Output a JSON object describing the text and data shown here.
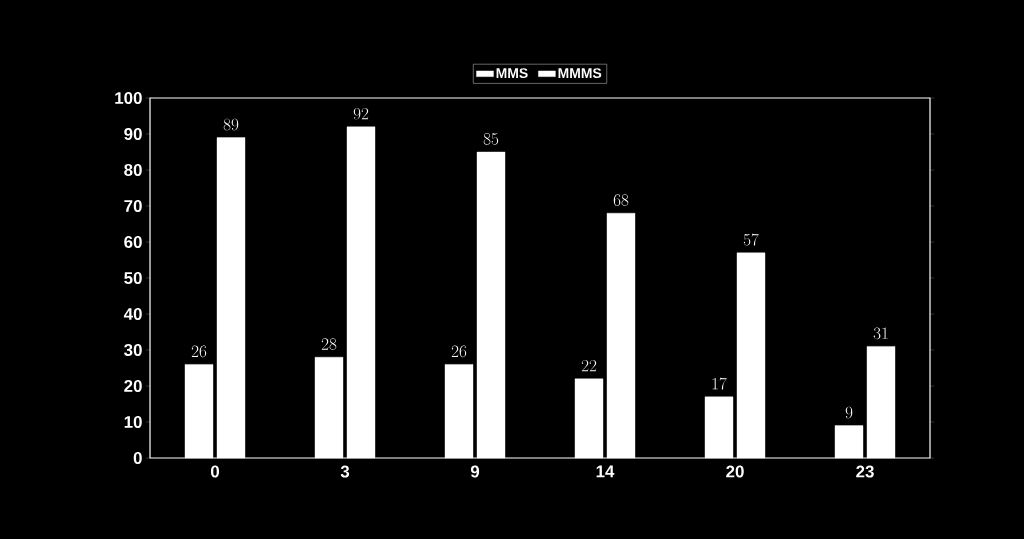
{
  "chart_data": {
    "type": "bar",
    "categories": [
      "0",
      "3",
      "9",
      "14",
      "20",
      "23"
    ],
    "series": [
      {
        "name": "MMS",
        "color": "#ffffff",
        "values": [
          26,
          28,
          26,
          22,
          17,
          9
        ]
      },
      {
        "name": "MMMS",
        "color": "#ffffff",
        "values": [
          89,
          92,
          85,
          68,
          57,
          31
        ]
      }
    ],
    "ylim": [
      0,
      100
    ],
    "yticks": [
      0,
      10,
      20,
      30,
      40,
      50,
      60,
      70,
      80,
      90,
      100
    ],
    "data_labels": true,
    "legend": "top",
    "grid": false
  }
}
